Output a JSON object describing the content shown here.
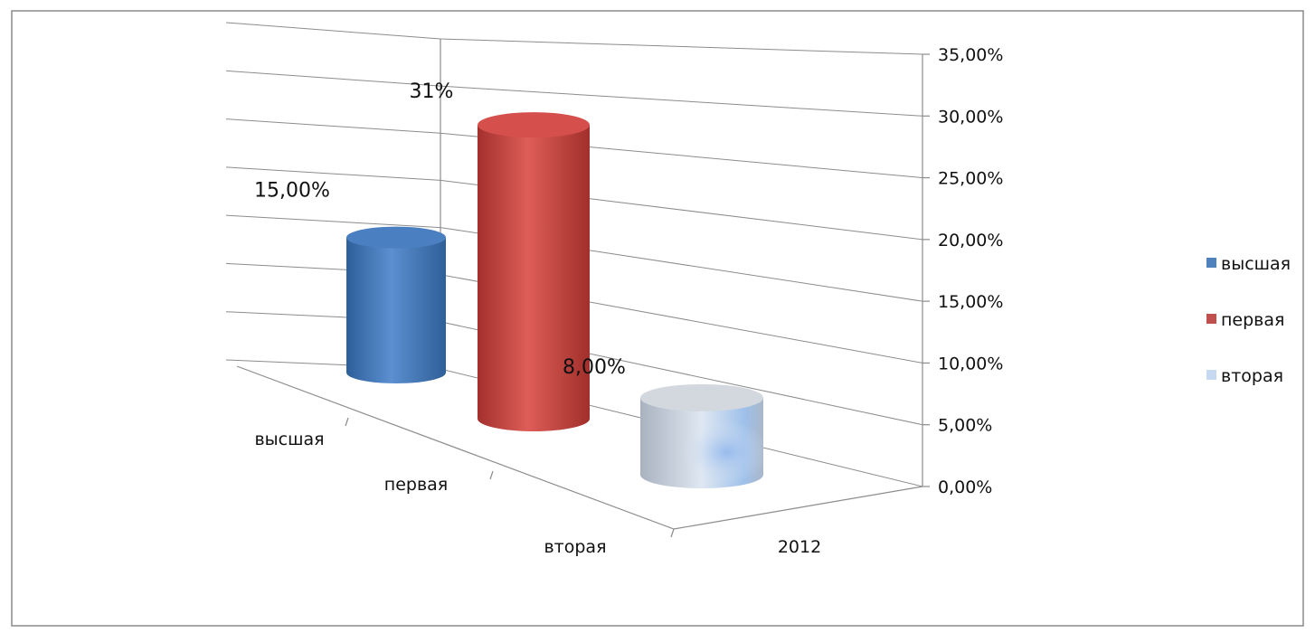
{
  "chart_data": {
    "type": "bar",
    "style": "3d-cylinder",
    "categories": [
      "высшая",
      "первая",
      "вторая"
    ],
    "series_axis_label": "2012",
    "values": [
      0.15,
      0.31,
      0.08
    ],
    "data_labels": [
      "15,00%",
      "31%",
      "8,00%"
    ],
    "ylim": [
      0,
      0.35
    ],
    "y_ticks": [
      "0,00%",
      "5,00%",
      "10,00%",
      "15,00%",
      "20,00%",
      "25,00%",
      "30,00%",
      "35,00%"
    ],
    "grid": true,
    "legend": {
      "placement": "right",
      "entries": [
        {
          "label": "высшая",
          "color": "#4f81bd"
        },
        {
          "label": "первая",
          "color": "#c0504d"
        },
        {
          "label": "вторая",
          "color": "#c6d9f1"
        }
      ]
    },
    "colors": [
      "#4f81bd",
      "#c0504d",
      "#c6d9f1"
    ]
  }
}
